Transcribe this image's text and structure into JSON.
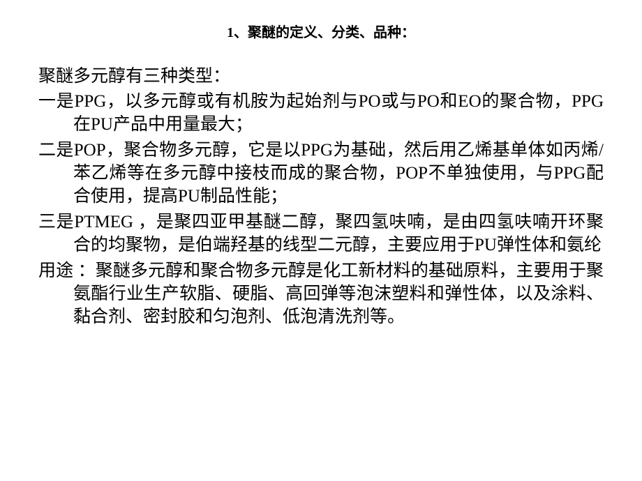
{
  "title": "1、聚醚的定义、分类、品种：",
  "intro": "聚醚多元醇有三种类型：",
  "para1": "一是PPG，以多元醇或有机胺为起始剂与PO或与PO和EO的聚合物，PPG在PU产品中用量最大；",
  "para2": "二是POP，聚合物多元醇，它是以PPG为基础，然后用乙烯基单体如丙烯/苯乙烯等在多元醇中接枝而成的聚合物，POP不单独使用，与PPG配合使用，提高PU制品性能；",
  "para3": "三是PTMEG ，是聚四亚甲基醚二醇，聚四氢呋喃，是由四氢呋喃开环聚合的均聚物，是伯端羟基的线型二元醇，主要应用于PU弹性体和氨纶",
  "para4": "用途 ：聚醚多元醇和聚合物多元醇是化工新材料的基础原料，主要用于聚氨酯行业生产软脂、硬脂、高回弹等泡沫塑料和弹性体，以及涂料、黏合剂、密封胶和匀泡剂、低泡清洗剂等。",
  "colors": {
    "background": "#ffffff",
    "text": "#000000"
  },
  "typography": {
    "title_fontsize": 20,
    "body_fontsize": 25,
    "title_weight": "bold",
    "font_family": "SimSun"
  }
}
